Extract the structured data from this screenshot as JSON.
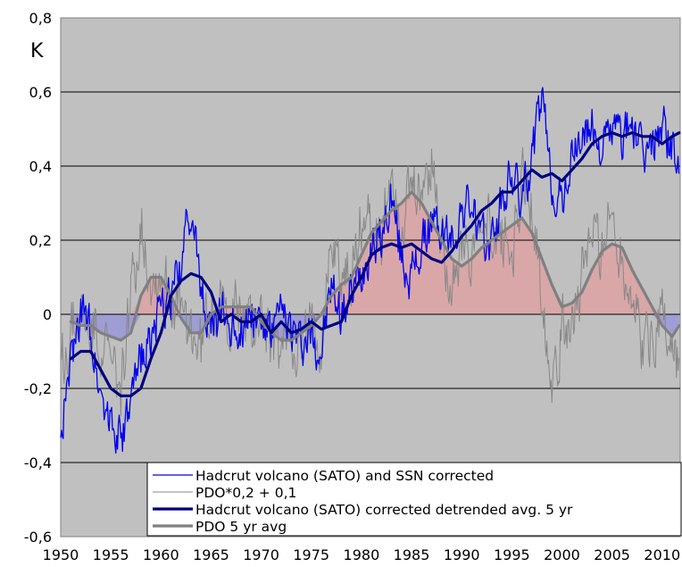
{
  "chart_data": {
    "type": "line",
    "ylabel": "K",
    "xlim": [
      1950,
      2011.8
    ],
    "ylim": [
      -0.6,
      0.8
    ],
    "x_ticks": [
      1950,
      1955,
      1960,
      1965,
      1970,
      1975,
      1980,
      1985,
      1990,
      1995,
      2000,
      2005,
      2010
    ],
    "x_tick_labels": [
      "1950",
      "1955",
      "1960",
      "1965",
      "1970",
      "1975",
      "1980",
      "1985",
      "1990",
      "1995",
      "2000",
      "2005",
      "2010"
    ],
    "y_ticks": [
      -0.6,
      -0.4,
      -0.2,
      0,
      0.2,
      0.4,
      0.6,
      0.8
    ],
    "y_tick_labels": [
      "-0,6",
      "-0,4",
      "-0,2",
      "0",
      "0,2",
      "0,4",
      "0,6",
      "0,8"
    ],
    "grid": "horizontal",
    "plot_background": "#c0c0c0",
    "positive_fill_color": "#d9a7a8",
    "negative_fill_color": "#9e9dd4",
    "legend": {
      "position": "bottom-right",
      "entries": [
        {
          "label": "Hadcrut volcano (SATO) and SSN corrected",
          "color": "#0000ee",
          "width": 1.3
        },
        {
          "label": "PDO*0,2 + 0,1",
          "color": "#888888",
          "width": 1
        },
        {
          "label": "Hadcrut volcano (SATO) corrected detrended avg. 5 yr",
          "color": "#000080",
          "width": 3.2
        },
        {
          "label": "PDO 5 yr avg",
          "color": "#808080",
          "width": 3.2
        }
      ]
    },
    "series": [
      {
        "name": "Hadcrut volcano (SATO) and SSN corrected",
        "color": "#0000ee",
        "kind": "monthly",
        "x": [
          1950,
          1951,
          1952,
          1953,
          1954,
          1955,
          1956,
          1957,
          1958,
          1959,
          1960,
          1961,
          1962,
          1963,
          1964,
          1965,
          1966,
          1967,
          1968,
          1969,
          1970,
          1971,
          1972,
          1973,
          1974,
          1975,
          1976,
          1977,
          1978,
          1979,
          1980,
          1981,
          1982,
          1983,
          1984,
          1985,
          1986,
          1987,
          1988,
          1989,
          1990,
          1991,
          1992,
          1993,
          1994,
          1995,
          1996,
          1997,
          1998,
          1999,
          2000,
          2001,
          2002,
          2003,
          2004,
          2005,
          2006,
          2007,
          2008,
          2009,
          2010,
          2011,
          2011.7
        ],
        "y": [
          -0.3,
          -0.15,
          0.0,
          -0.05,
          -0.2,
          -0.28,
          -0.35,
          -0.25,
          -0.12,
          -0.05,
          0.0,
          0.05,
          0.12,
          0.3,
          0.05,
          -0.05,
          0.0,
          -0.02,
          -0.03,
          0.02,
          -0.02,
          -0.05,
          0.0,
          -0.03,
          -0.08,
          -0.05,
          -0.1,
          0.08,
          0.0,
          0.05,
          0.12,
          0.2,
          0.2,
          0.32,
          0.15,
          0.1,
          0.18,
          0.25,
          0.22,
          0.2,
          0.28,
          0.3,
          0.18,
          0.2,
          0.3,
          0.38,
          0.3,
          0.42,
          0.58,
          0.35,
          0.3,
          0.42,
          0.48,
          0.5,
          0.45,
          0.5,
          0.48,
          0.52,
          0.42,
          0.45,
          0.52,
          0.45,
          0.4
        ],
        "amplitude": 0.1
      },
      {
        "name": "PDO*0,2 + 0,1",
        "color": "#888888",
        "kind": "monthly",
        "x": [
          1950,
          1951,
          1952,
          1953,
          1954,
          1955,
          1956,
          1957,
          1958,
          1959,
          1960,
          1961,
          1962,
          1963,
          1964,
          1965,
          1966,
          1967,
          1968,
          1969,
          1970,
          1971,
          1972,
          1973,
          1974,
          1975,
          1976,
          1977,
          1978,
          1979,
          1980,
          1981,
          1982,
          1983,
          1984,
          1985,
          1986,
          1987,
          1988,
          1989,
          1990,
          1991,
          1992,
          1993,
          1994,
          1995,
          1996,
          1997,
          1998,
          1999,
          2000,
          2001,
          2002,
          2003,
          2004,
          2005,
          2006,
          2007,
          2008,
          2009,
          2010,
          2011,
          2011.7
        ],
        "y": [
          -0.15,
          -0.05,
          0.0,
          -0.05,
          -0.05,
          -0.15,
          -0.2,
          0.05,
          0.25,
          0.1,
          0.1,
          0.05,
          0.0,
          -0.05,
          -0.1,
          0.05,
          0.0,
          0.0,
          0.0,
          -0.05,
          0.0,
          -0.1,
          -0.1,
          -0.05,
          -0.1,
          -0.05,
          -0.05,
          0.2,
          0.1,
          0.1,
          0.25,
          0.25,
          0.2,
          0.4,
          0.25,
          0.3,
          0.35,
          0.4,
          0.2,
          0.1,
          0.15,
          0.2,
          0.2,
          0.25,
          0.2,
          0.15,
          0.35,
          0.3,
          0.05,
          -0.15,
          -0.05,
          0.0,
          0.1,
          0.2,
          0.2,
          0.25,
          0.15,
          0.05,
          -0.1,
          -0.05,
          0.0,
          -0.1,
          -0.15
        ],
        "amplitude": 0.14
      },
      {
        "name": "Hadcrut volcano (SATO) corrected detrended avg. 5 yr",
        "color": "#000080",
        "x": [
          1951,
          1952,
          1953,
          1954,
          1955,
          1956,
          1957,
          1958,
          1959,
          1960,
          1961,
          1962,
          1963,
          1964,
          1965,
          1966,
          1967,
          1968,
          1969,
          1970,
          1971,
          1972,
          1973,
          1974,
          1975,
          1976,
          1977,
          1978,
          1979,
          1980,
          1981,
          1982,
          1983,
          1984,
          1985,
          1986,
          1987,
          1988,
          1989,
          1990,
          1991,
          1992,
          1993,
          1994,
          1995,
          1996,
          1997,
          1998,
          1999,
          2000,
          2001,
          2002,
          2003,
          2004,
          2005,
          2006,
          2007,
          2008,
          2009,
          2010,
          2011,
          2011.7
        ],
        "y": [
          -0.12,
          -0.1,
          -0.1,
          -0.15,
          -0.2,
          -0.22,
          -0.22,
          -0.2,
          -0.12,
          -0.05,
          0.05,
          0.09,
          0.11,
          0.1,
          0.06,
          -0.02,
          0.0,
          -0.02,
          -0.02,
          0.0,
          -0.05,
          -0.02,
          -0.05,
          -0.04,
          -0.02,
          -0.04,
          -0.03,
          -0.02,
          0.05,
          0.1,
          0.16,
          0.18,
          0.19,
          0.18,
          0.19,
          0.17,
          0.15,
          0.14,
          0.17,
          0.21,
          0.24,
          0.28,
          0.3,
          0.33,
          0.33,
          0.36,
          0.39,
          0.37,
          0.38,
          0.36,
          0.39,
          0.42,
          0.46,
          0.48,
          0.49,
          0.48,
          0.49,
          0.48,
          0.48,
          0.46,
          0.48,
          0.49
        ]
      },
      {
        "name": "PDO 5 yr avg",
        "color": "#808080",
        "x": [
          1951,
          1952,
          1953,
          1954,
          1955,
          1956,
          1957,
          1958,
          1959,
          1960,
          1961,
          1962,
          1963,
          1964,
          1965,
          1966,
          1967,
          1968,
          1969,
          1970,
          1971,
          1972,
          1973,
          1974,
          1975,
          1976,
          1977,
          1978,
          1979,
          1980,
          1981,
          1982,
          1983,
          1984,
          1985,
          1986,
          1987,
          1988,
          1989,
          1990,
          1991,
          1992,
          1993,
          1994,
          1995,
          1996,
          1997,
          1998,
          1999,
          2000,
          2001,
          2002,
          2003,
          2004,
          2005,
          2006,
          2007,
          2008,
          2009,
          2010,
          2011,
          2011.7
        ],
        "y": [
          -0.02,
          -0.03,
          -0.03,
          -0.05,
          -0.06,
          -0.07,
          -0.05,
          0.05,
          0.1,
          0.1,
          0.05,
          -0.01,
          -0.05,
          -0.05,
          0.0,
          0.02,
          0.02,
          0.02,
          0.02,
          -0.02,
          -0.05,
          -0.07,
          -0.07,
          -0.05,
          -0.03,
          0.0,
          0.05,
          0.08,
          0.1,
          0.16,
          0.22,
          0.25,
          0.28,
          0.3,
          0.33,
          0.3,
          0.25,
          0.2,
          0.15,
          0.13,
          0.15,
          0.18,
          0.2,
          0.22,
          0.24,
          0.26,
          0.22,
          0.15,
          0.08,
          0.02,
          0.03,
          0.06,
          0.12,
          0.17,
          0.19,
          0.18,
          0.12,
          0.07,
          0.02,
          -0.03,
          -0.06,
          -0.03
        ]
      }
    ]
  }
}
